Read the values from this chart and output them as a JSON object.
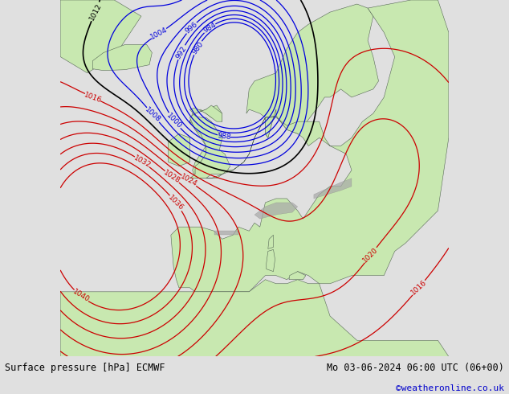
{
  "title_left": "Surface pressure [hPa] ECMWF",
  "title_right": "Mo 03-06-2024 06:00 UTC (06+00)",
  "title_right2": "©weatheronline.co.uk",
  "ocean_color": "#b8cfe0",
  "land_color": "#c8e8b0",
  "mountain_color": "#a8a8a8",
  "contour_low_color": "#0000dd",
  "contour_high_color": "#cc0000",
  "contour_1013_color": "#000000",
  "footer_bg": "#e0e0e0",
  "lon_min": -30,
  "lon_max": 42,
  "lat_min": 28,
  "lat_max": 72,
  "low_levels": [
    980,
    984,
    988,
    992,
    996,
    1000,
    1004,
    1008
  ],
  "high_levels": [
    1016,
    1020,
    1024,
    1028,
    1032,
    1036,
    1040
  ],
  "std_levels": [
    1012
  ]
}
